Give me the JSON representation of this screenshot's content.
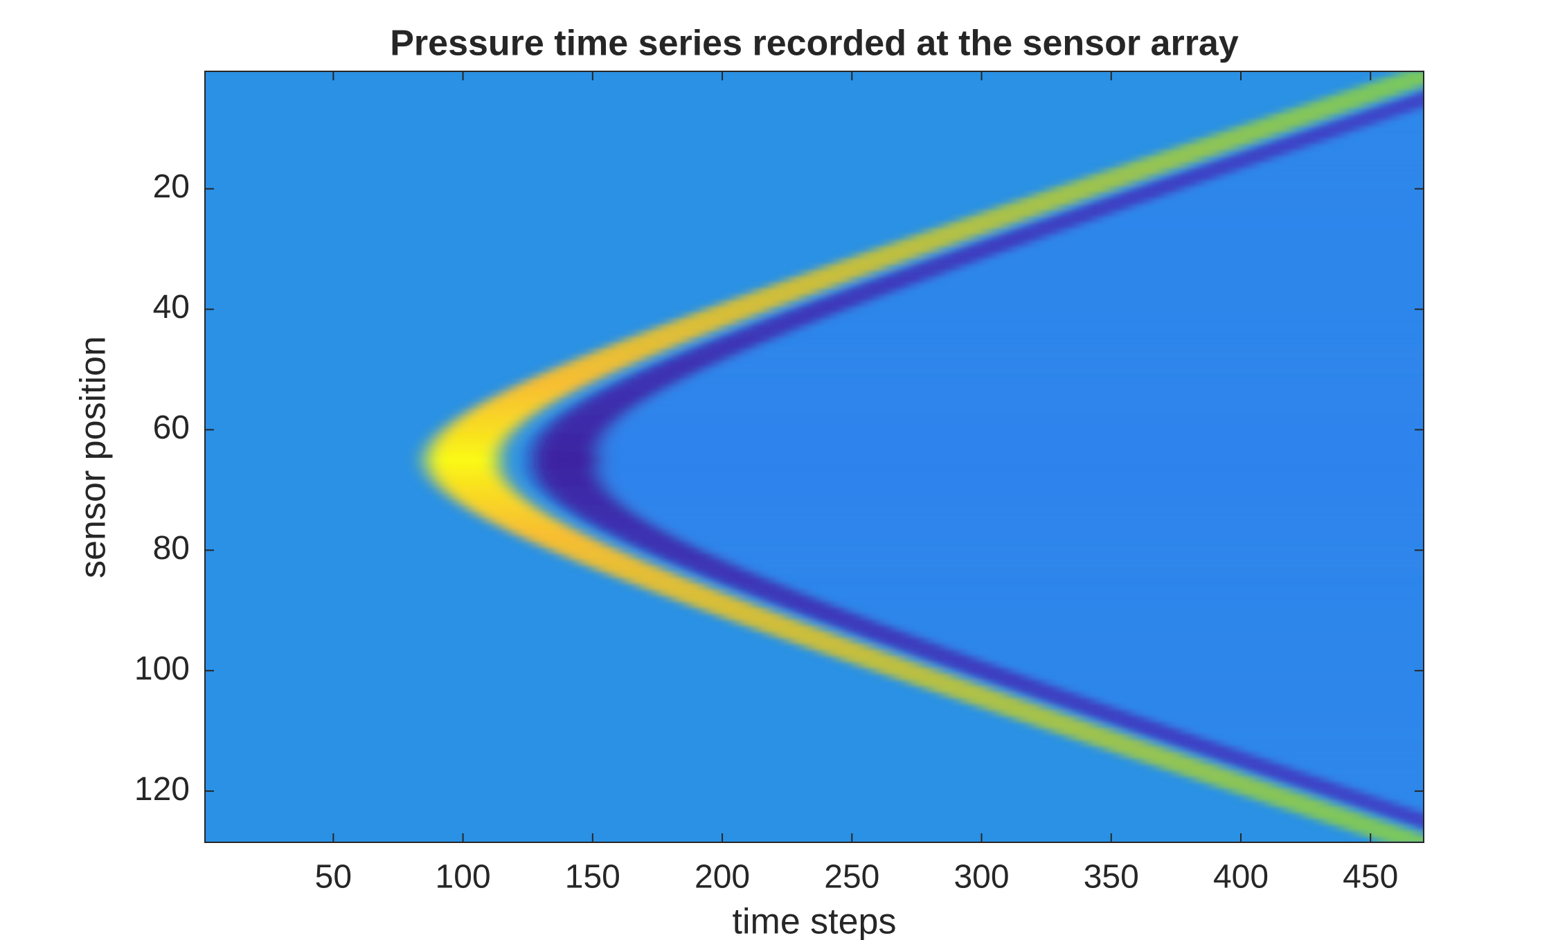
{
  "chart_data": {
    "type": "heatmap",
    "title": "Pressure time series recorded at the sensor array",
    "x_label": "time steps",
    "y_label": "sensor position",
    "xlim": [
      0.5,
      470.5
    ],
    "xticks": [
      50,
      100,
      150,
      200,
      250,
      300,
      350,
      400,
      450
    ],
    "ylim": [
      0.5,
      128.5
    ],
    "yticks": [
      20,
      40,
      60,
      80,
      100,
      120
    ],
    "y_direction": "reverse"
  }
}
